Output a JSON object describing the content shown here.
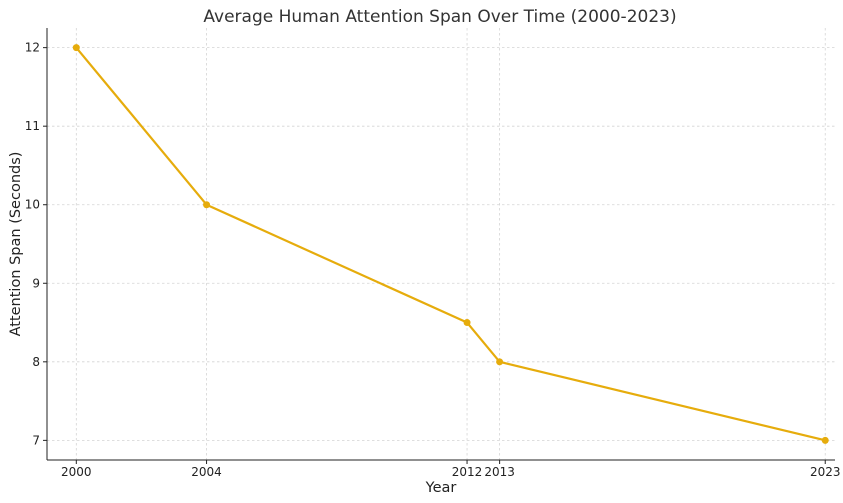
{
  "chart_data": {
    "type": "line",
    "title": "Average Human Attention Span Over Time (2000-2023)",
    "xlabel": "Year",
    "ylabel": "Attention Span (Seconds)",
    "x": [
      2000,
      2004,
      2012,
      2013,
      2023
    ],
    "x_ticks": [
      "2000",
      "2004",
      "2012",
      "2013",
      "2023"
    ],
    "series": [
      {
        "name": "",
        "values": [
          12,
          10,
          8.5,
          8,
          7
        ],
        "color": "#e6ac0c",
        "marker": "circle"
      }
    ],
    "y_ticks": [
      7,
      8,
      9,
      10,
      11,
      12
    ],
    "xlim": [
      1999.1,
      2023.3
    ],
    "ylim": [
      6.75,
      12.25
    ],
    "grid": true,
    "legend": "none"
  }
}
